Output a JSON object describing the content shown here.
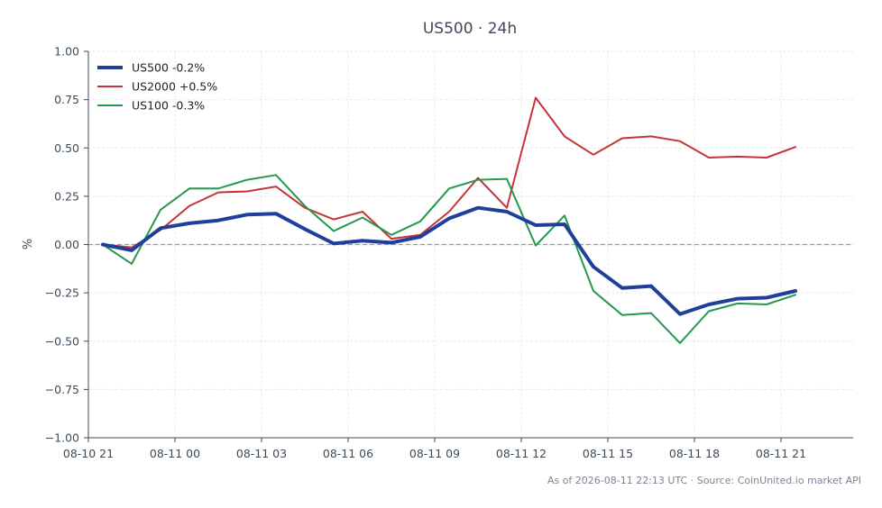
{
  "chart_data": {
    "type": "line",
    "title": "US500 · 24h",
    "xlabel": "",
    "ylabel": "%",
    "ylim": [
      -1.0,
      1.0
    ],
    "xlim": [
      -0.5,
      26.0
    ],
    "y_ticks": [
      1.0,
      0.75,
      0.5,
      0.25,
      0.0,
      -0.25,
      -0.5,
      -0.75,
      -1.0
    ],
    "y_tick_labels": [
      "1.00",
      "0.75",
      "0.50",
      "0.25",
      "0.00",
      "−0.25",
      "−0.50",
      "−0.75",
      "−1.00"
    ],
    "x_ticks": [
      -0.5,
      2.5,
      5.5,
      8.5,
      11.5,
      14.5,
      17.5,
      20.5,
      23.5
    ],
    "x_tick_labels": [
      "08-10 21",
      "08-11 00",
      "08-11 03",
      "08-11 06",
      "08-11 09",
      "08-11 12",
      "08-11 15",
      "08-11 18",
      "08-11 21"
    ],
    "grid": true,
    "zero_line": true,
    "legend": "top-left",
    "x": [
      0,
      1,
      2,
      3,
      4,
      5,
      6,
      7,
      8,
      9,
      10,
      11,
      12,
      13,
      14,
      15,
      16,
      17,
      18,
      19,
      20,
      21,
      22,
      23,
      24
    ],
    "series": [
      {
        "name": "US500 -0.2%",
        "color": "#1f3f9a",
        "width": 4,
        "values": [
          0.0,
          -0.03,
          0.085,
          0.11,
          0.125,
          0.155,
          0.16,
          0.08,
          0.005,
          0.02,
          0.01,
          0.04,
          0.135,
          0.19,
          0.17,
          0.1,
          0.105,
          -0.115,
          -0.225,
          -0.215,
          -0.36,
          -0.31,
          -0.28,
          -0.275,
          -0.24
        ]
      },
      {
        "name": "US2000 +0.5%",
        "color": "#c6343a",
        "width": 2,
        "values": [
          0.0,
          -0.015,
          0.075,
          0.2,
          0.27,
          0.275,
          0.3,
          0.19,
          0.13,
          0.17,
          0.03,
          0.05,
          0.17,
          0.345,
          0.19,
          0.76,
          0.56,
          0.465,
          0.55,
          0.56,
          0.535,
          0.45,
          0.455,
          0.45,
          0.505
        ]
      },
      {
        "name": "US100 -0.3%",
        "color": "#24994c",
        "width": 2,
        "values": [
          0.0,
          -0.1,
          0.18,
          0.29,
          0.29,
          0.335,
          0.36,
          0.2,
          0.07,
          0.14,
          0.05,
          0.12,
          0.29,
          0.335,
          0.34,
          -0.005,
          0.15,
          -0.24,
          -0.365,
          -0.355,
          -0.51,
          -0.345,
          -0.305,
          -0.31,
          -0.26
        ]
      }
    ],
    "footer": "As of 2026-08-11 22:13 UTC · Source: CoinUnited.io market API"
  }
}
